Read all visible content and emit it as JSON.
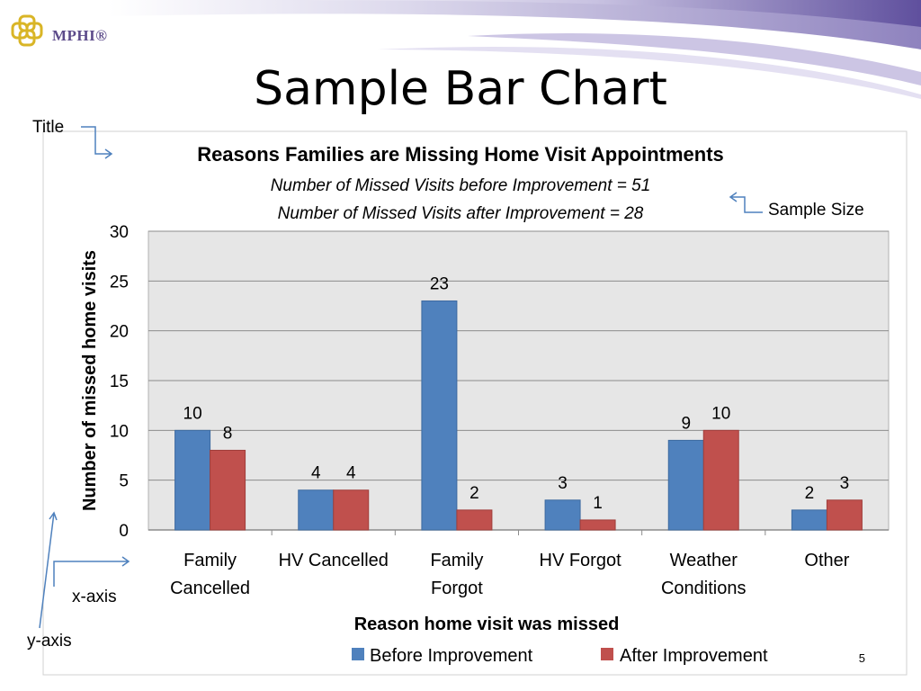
{
  "logo": {
    "text": "MPHI®"
  },
  "slide": {
    "title": "Sample Bar Chart",
    "page_number": "5"
  },
  "annotations": {
    "title": "Title",
    "sample_size": "Sample Size",
    "x_axis": "x-axis",
    "y_axis": "y-axis"
  },
  "colors": {
    "before": "#4f81bd",
    "after": "#c0504d",
    "plot_bg": "#e6e6e6",
    "gridline": "#8c8c8c"
  },
  "chart_data": {
    "type": "bar",
    "title": "Reasons Families are Missing Home Visit Appointments",
    "subtitles": [
      "Number of Missed Visits before Improvement = 51",
      "Number of Missed Visits after Improvement = 28"
    ],
    "xlabel": "Reason home visit was missed",
    "ylabel": "Number of missed home visits",
    "ylim": [
      0,
      30
    ],
    "yticks": [
      0,
      5,
      10,
      15,
      20,
      25,
      30
    ],
    "categories": [
      [
        "Family",
        "Cancelled"
      ],
      [
        "HV Cancelled"
      ],
      [
        "Family",
        "Forgot"
      ],
      [
        "HV Forgot"
      ],
      [
        "Weather",
        "Conditions"
      ],
      [
        "Other"
      ]
    ],
    "series": [
      {
        "name": "Before Improvement",
        "values": [
          10,
          4,
          23,
          3,
          9,
          2
        ]
      },
      {
        "name": "After Improvement",
        "values": [
          8,
          4,
          2,
          1,
          10,
          3
        ]
      }
    ],
    "grid": true,
    "legend": "bottom"
  }
}
